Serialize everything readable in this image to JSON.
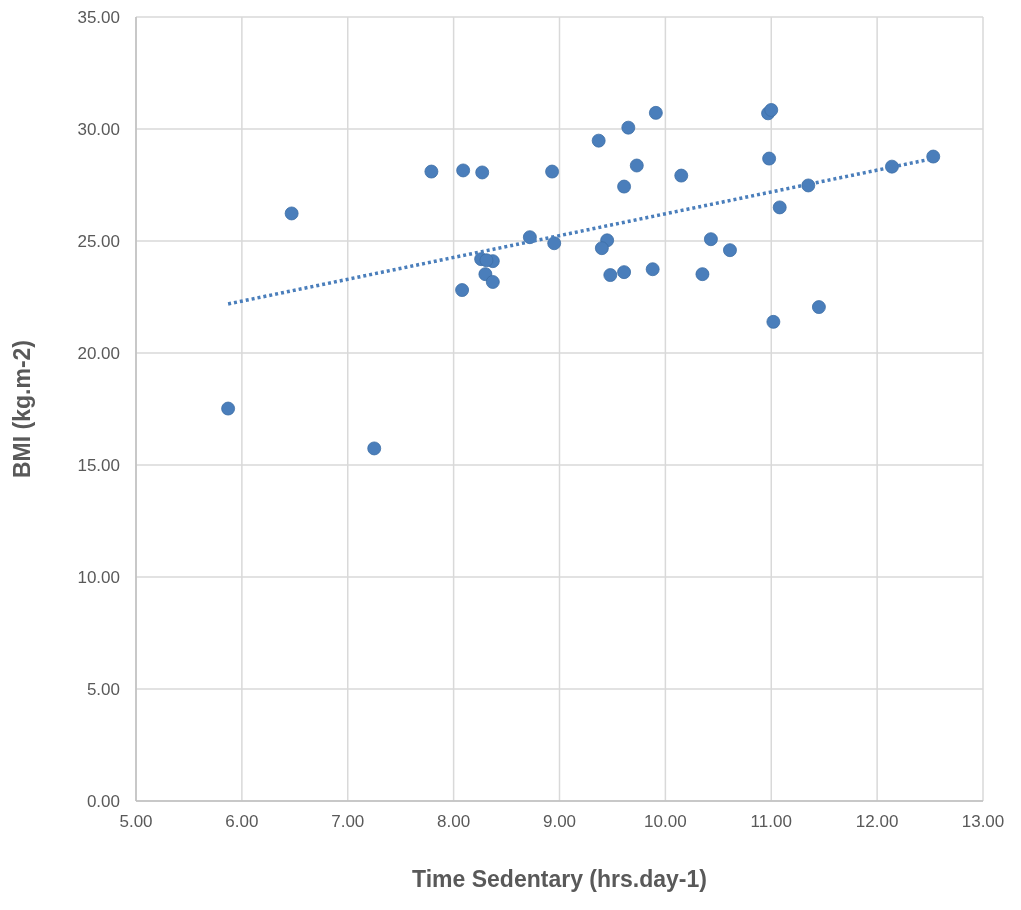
{
  "chart_data": {
    "type": "scatter",
    "xlabel": "Time Sedentary (hrs.day-1)",
    "ylabel": "BMI (kg.m-2)",
    "xlim": [
      5,
      13
    ],
    "xticks": [
      {
        "value": 5,
        "label": "5.00"
      },
      {
        "value": 6,
        "label": "6.00"
      },
      {
        "value": 7,
        "label": "7.00"
      },
      {
        "value": 8,
        "label": "8.00"
      },
      {
        "value": 9,
        "label": "9.00"
      },
      {
        "value": 10,
        "label": "10.00"
      },
      {
        "value": 11,
        "label": "11.00"
      },
      {
        "value": 12,
        "label": "12.00"
      },
      {
        "value": 13,
        "label": "13.00"
      }
    ],
    "ylim": [
      0,
      35
    ],
    "yticks": [
      {
        "value": 0,
        "label": "0.00"
      },
      {
        "value": 5,
        "label": "5.00"
      },
      {
        "value": 10,
        "label": "10.00"
      },
      {
        "value": 15,
        "label": "15.00"
      },
      {
        "value": 20,
        "label": "20.00"
      },
      {
        "value": 25,
        "label": "25.00"
      },
      {
        "value": 30,
        "label": "30.00"
      },
      {
        "value": 35,
        "label": "35.00"
      }
    ],
    "grid": true,
    "marker": "circle",
    "series": [
      {
        "color": "#4a7ebb",
        "x": [
          5.87,
          6.47,
          7.25,
          7.79,
          8.09,
          8.27,
          8.93,
          9.37,
          9.65,
          9.91,
          9.73,
          9.61,
          10.15,
          8.72,
          8.95,
          9.45,
          9.4,
          8.26,
          8.37,
          8.31,
          8.3,
          8.37,
          8.08,
          9.48,
          9.61,
          9.88,
          10.97,
          11.0,
          10.98,
          11.35,
          12.14,
          12.53,
          11.08,
          10.43,
          10.61,
          10.35,
          11.02,
          11.45
        ],
        "values": [
          17.52,
          26.23,
          15.74,
          28.1,
          28.15,
          28.06,
          28.1,
          29.48,
          30.06,
          30.72,
          28.37,
          27.43,
          27.92,
          25.17,
          24.9,
          25.03,
          24.68,
          24.19,
          24.1,
          24.14,
          23.52,
          23.17,
          22.81,
          23.48,
          23.61,
          23.74,
          30.7,
          30.85,
          28.68,
          27.48,
          28.32,
          28.77,
          26.5,
          25.08,
          24.59,
          23.52,
          21.39,
          22.05
        ]
      },
      {
        "type": "line",
        "color": "#4a7ebb",
        "line_style": "dotted",
        "marker": "none",
        "x": [
          5.87,
          12.53
        ],
        "values": [
          22.19,
          28.68
        ]
      }
    ]
  }
}
